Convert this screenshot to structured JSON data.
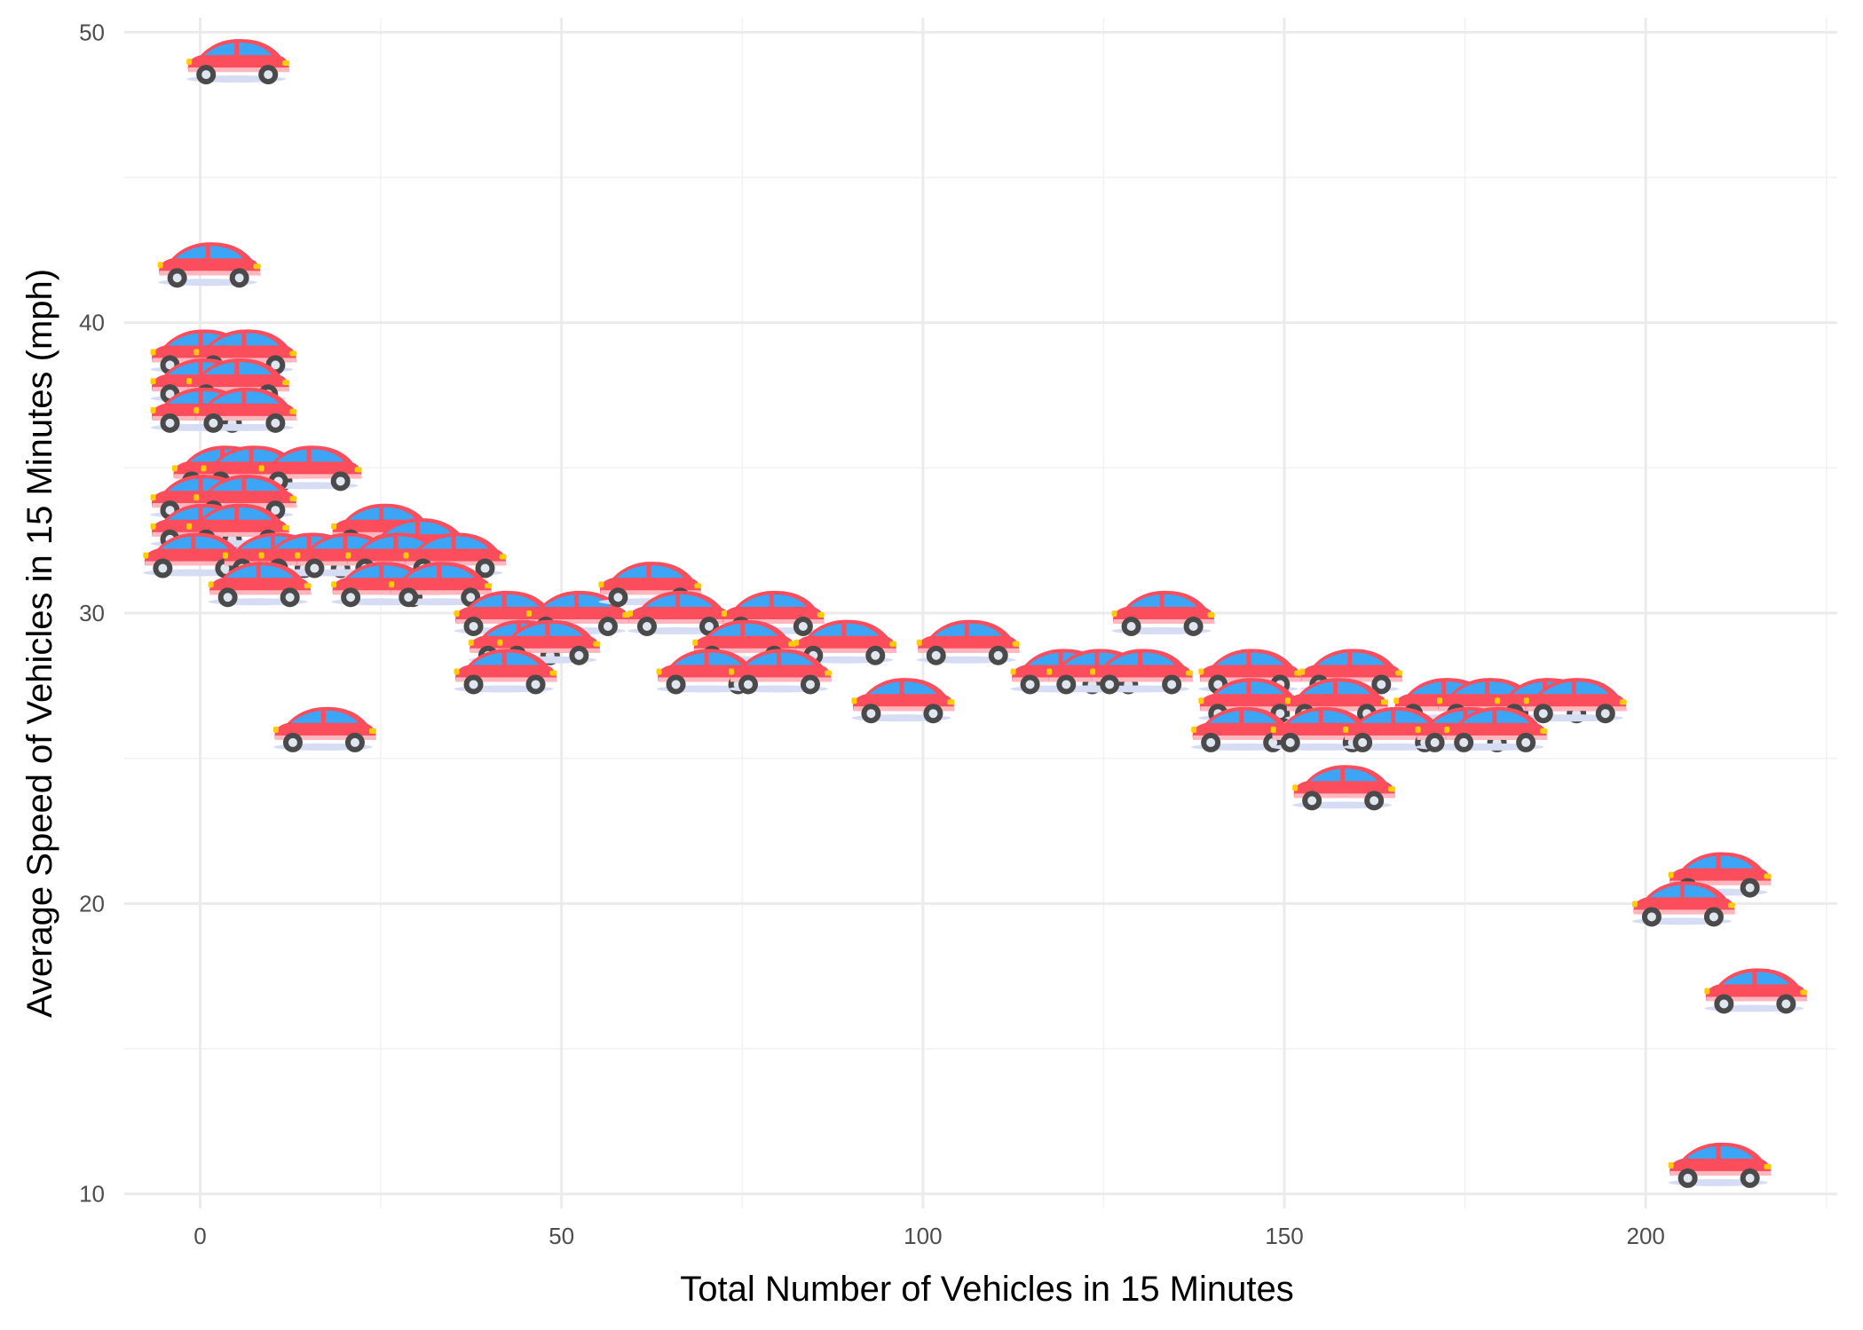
{
  "chart_data": {
    "type": "scatter",
    "title": "",
    "xlabel": "Total Number of Vehicles in 15 Minutes",
    "ylabel": "Average Speed of Vehicles in 15 Minutes (mph)",
    "xlim": [
      -10.5,
      226.5
    ],
    "ylim": [
      9.5,
      50.5
    ],
    "x_ticks": [
      0,
      50,
      100,
      150,
      200
    ],
    "y_ticks": [
      10,
      20,
      30,
      40,
      50
    ],
    "x_tick_labels": [
      "0",
      "50",
      "100",
      "150",
      "200"
    ],
    "y_tick_labels": [
      "10",
      "20",
      "30",
      "40",
      "50"
    ],
    "grid": true,
    "marker": "car-icon",
    "colors": {
      "body": "#fc4d5c",
      "window": "#3da5f5",
      "tire": "#4a4a4a",
      "hub": "#dfe6ef",
      "headlight": "#ffcc00",
      "grid": "#ebebeb"
    },
    "points": [
      {
        "x": 5,
        "y": 49
      },
      {
        "x": 1,
        "y": 42
      },
      {
        "x": 0,
        "y": 39
      },
      {
        "x": 6,
        "y": 39
      },
      {
        "x": 0,
        "y": 38
      },
      {
        "x": 5,
        "y": 38
      },
      {
        "x": 0,
        "y": 37
      },
      {
        "x": 6,
        "y": 37
      },
      {
        "x": 3,
        "y": 35
      },
      {
        "x": 7,
        "y": 35
      },
      {
        "x": 15,
        "y": 35
      },
      {
        "x": 0,
        "y": 34
      },
      {
        "x": 6,
        "y": 34
      },
      {
        "x": 0,
        "y": 33
      },
      {
        "x": 5,
        "y": 33
      },
      {
        "x": 25,
        "y": 33
      },
      {
        "x": 30,
        "y": 32.5
      },
      {
        "x": -1,
        "y": 32
      },
      {
        "x": 10,
        "y": 32
      },
      {
        "x": 15,
        "y": 32
      },
      {
        "x": 20,
        "y": 32
      },
      {
        "x": 27,
        "y": 32
      },
      {
        "x": 35,
        "y": 32
      },
      {
        "x": 8,
        "y": 31
      },
      {
        "x": 25,
        "y": 31
      },
      {
        "x": 33,
        "y": 31
      },
      {
        "x": 42,
        "y": 30
      },
      {
        "x": 52,
        "y": 30
      },
      {
        "x": 62,
        "y": 31
      },
      {
        "x": 66,
        "y": 30
      },
      {
        "x": 79,
        "y": 30
      },
      {
        "x": 75,
        "y": 29
      },
      {
        "x": 89,
        "y": 29
      },
      {
        "x": 44,
        "y": 29
      },
      {
        "x": 48,
        "y": 29
      },
      {
        "x": 106,
        "y": 29
      },
      {
        "x": 42,
        "y": 28
      },
      {
        "x": 70,
        "y": 28
      },
      {
        "x": 80,
        "y": 28
      },
      {
        "x": 119,
        "y": 28
      },
      {
        "x": 124,
        "y": 28
      },
      {
        "x": 130,
        "y": 28
      },
      {
        "x": 145,
        "y": 28
      },
      {
        "x": 159,
        "y": 28
      },
      {
        "x": 133,
        "y": 30
      },
      {
        "x": 97,
        "y": 27
      },
      {
        "x": 145,
        "y": 27
      },
      {
        "x": 157,
        "y": 27
      },
      {
        "x": 172,
        "y": 27
      },
      {
        "x": 178,
        "y": 27
      },
      {
        "x": 186,
        "y": 27
      },
      {
        "x": 190,
        "y": 27
      },
      {
        "x": 144,
        "y": 26
      },
      {
        "x": 155,
        "y": 26
      },
      {
        "x": 165,
        "y": 26
      },
      {
        "x": 175,
        "y": 26
      },
      {
        "x": 179,
        "y": 26
      },
      {
        "x": 158,
        "y": 24
      },
      {
        "x": 17,
        "y": 26
      },
      {
        "x": 210,
        "y": 21
      },
      {
        "x": 205,
        "y": 20
      },
      {
        "x": 215,
        "y": 17
      },
      {
        "x": 210,
        "y": 11
      }
    ]
  }
}
